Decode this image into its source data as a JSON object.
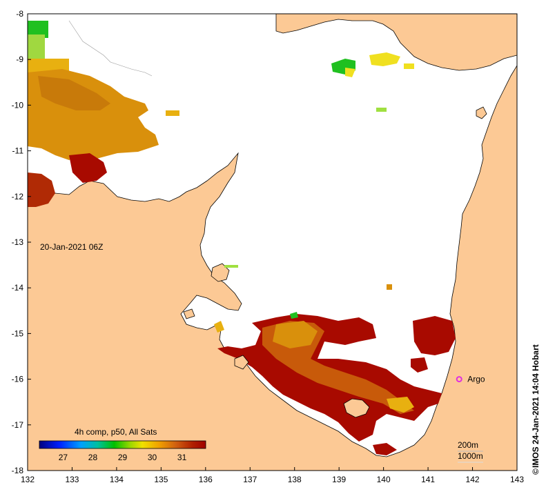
{
  "map": {
    "date_label": "20-Jan-2021 06Z",
    "credit": "IMOS 24-Jan-2021 14:04 Hobart",
    "copyright_symbol": "©",
    "land_color": "#fcc995",
    "water_color": "#ffffff",
    "frame_color": "#000000",
    "lon_range": [
      132,
      143
    ],
    "lat_range": [
      -18,
      -8
    ],
    "lon_ticks": [
      "132",
      "133",
      "134",
      "135",
      "136",
      "137",
      "138",
      "139",
      "140",
      "141",
      "142",
      "143"
    ],
    "lat_ticks": [
      "-8",
      "-9",
      "-10",
      "-11",
      "-12",
      "-13",
      "-14",
      "-15",
      "-16",
      "-17",
      "-18"
    ],
    "argo": {
      "label": "Argo",
      "lon": 141.7,
      "lat": -16.0,
      "color": "#e030e0"
    },
    "contours": [
      "200m",
      "1000m"
    ]
  },
  "legend": {
    "title": "4h comp, p50, All Sats",
    "ticks": [
      "27",
      "28",
      "29",
      "30",
      "31"
    ],
    "range": [
      26.2,
      31.8
    ],
    "colors": [
      "#00007f",
      "#0000ff",
      "#007fff",
      "#00bfbf",
      "#00c000",
      "#7fd000",
      "#e0e000",
      "#ffbf00",
      "#e08000",
      "#c04000",
      "#a00000"
    ]
  },
  "sst_colors": {
    "warm_dark": "#a80a00",
    "warm_mid": "#c85a0a",
    "orange": "#d9900c",
    "yellow_orange": "#e8b010",
    "yellow": "#f0e020",
    "green": "#20c020",
    "light_green": "#a0e040"
  }
}
